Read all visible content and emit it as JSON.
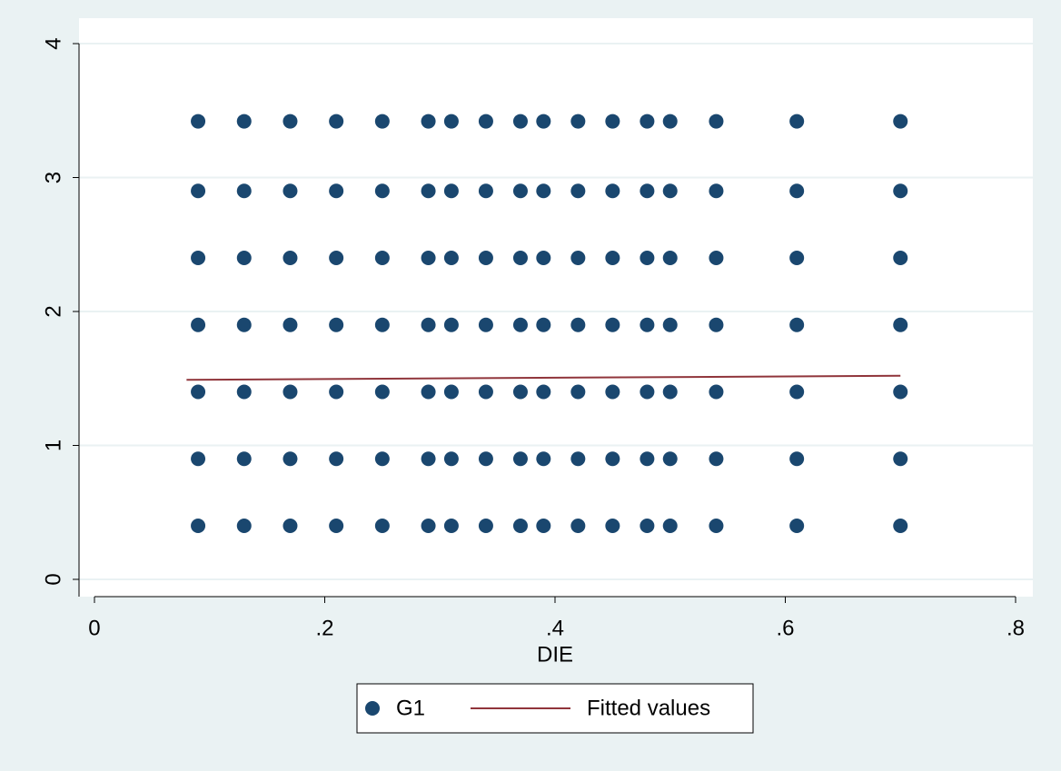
{
  "chart_data": {
    "type": "scatter",
    "x_label": "DIE",
    "x": [
      0.09,
      0.09,
      0.09,
      0.09,
      0.09,
      0.09,
      0.09,
      0.13,
      0.13,
      0.13,
      0.13,
      0.13,
      0.13,
      0.13,
      0.17,
      0.17,
      0.17,
      0.17,
      0.17,
      0.17,
      0.17,
      0.21,
      0.21,
      0.21,
      0.21,
      0.21,
      0.21,
      0.21,
      0.25,
      0.25,
      0.25,
      0.25,
      0.25,
      0.25,
      0.25,
      0.29,
      0.29,
      0.29,
      0.29,
      0.29,
      0.29,
      0.29,
      0.31,
      0.31,
      0.31,
      0.31,
      0.31,
      0.31,
      0.31,
      0.34,
      0.34,
      0.34,
      0.34,
      0.34,
      0.34,
      0.34,
      0.37,
      0.37,
      0.37,
      0.37,
      0.37,
      0.37,
      0.37,
      0.39,
      0.39,
      0.39,
      0.39,
      0.39,
      0.39,
      0.39,
      0.42,
      0.42,
      0.42,
      0.42,
      0.42,
      0.42,
      0.42,
      0.45,
      0.45,
      0.45,
      0.45,
      0.45,
      0.45,
      0.45,
      0.48,
      0.48,
      0.48,
      0.48,
      0.48,
      0.48,
      0.48,
      0.5,
      0.5,
      0.5,
      0.5,
      0.5,
      0.5,
      0.5,
      0.54,
      0.54,
      0.54,
      0.54,
      0.54,
      0.54,
      0.54,
      0.61,
      0.61,
      0.61,
      0.61,
      0.61,
      0.61,
      0.61,
      0.7,
      0.7,
      0.7,
      0.7,
      0.7,
      0.7,
      0.7
    ],
    "series": [
      {
        "name": "G1",
        "color": "#1a476f",
        "values": [
          0.4,
          0.9,
          1.4,
          1.9,
          2.4,
          2.9,
          3.42,
          0.4,
          0.9,
          1.4,
          1.9,
          2.4,
          2.9,
          3.42,
          0.4,
          0.9,
          1.4,
          1.9,
          2.4,
          2.9,
          3.42,
          0.4,
          0.9,
          1.4,
          1.9,
          2.4,
          2.9,
          3.42,
          0.4,
          0.9,
          1.4,
          1.9,
          2.4,
          2.9,
          3.42,
          0.4,
          0.9,
          1.4,
          1.9,
          2.4,
          2.9,
          3.42,
          0.4,
          0.9,
          1.4,
          1.9,
          2.4,
          2.9,
          3.42,
          0.4,
          0.9,
          1.4,
          1.9,
          2.4,
          2.9,
          3.42,
          0.4,
          0.9,
          1.4,
          1.9,
          2.4,
          2.9,
          3.42,
          0.4,
          0.9,
          1.4,
          1.9,
          2.4,
          2.9,
          3.42,
          0.4,
          0.9,
          1.4,
          1.9,
          2.4,
          2.9,
          3.42,
          0.4,
          0.9,
          1.4,
          1.9,
          2.4,
          2.9,
          3.42,
          0.4,
          0.9,
          1.4,
          1.9,
          2.4,
          2.9,
          3.42,
          0.4,
          0.9,
          1.4,
          1.9,
          2.4,
          2.9,
          3.42,
          0.4,
          0.9,
          1.4,
          1.9,
          2.4,
          2.9,
          3.42,
          0.4,
          0.9,
          1.4,
          1.9,
          2.4,
          2.9,
          3.42,
          0.4,
          0.9,
          1.4,
          1.9,
          2.4,
          2.9,
          3.42
        ]
      },
      {
        "name": "Fitted values",
        "color": "#90353b",
        "line": true,
        "x": [
          0.08,
          0.7
        ],
        "values": [
          1.49,
          1.52
        ]
      }
    ],
    "xlim": [
      -0.0134,
      0.815
    ],
    "ylim": [
      -0.129,
      4.19
    ],
    "xticks": [
      0,
      {
        "value": 0.2,
        "label": ".2"
      },
      {
        "value": 0.4,
        "label": ".4"
      },
      {
        "value": 0.6,
        "label": ".6"
      },
      {
        "value": 0.8,
        "label": ".8"
      }
    ],
    "yticks": [
      0,
      1,
      2,
      3,
      4
    ],
    "grid": true
  }
}
